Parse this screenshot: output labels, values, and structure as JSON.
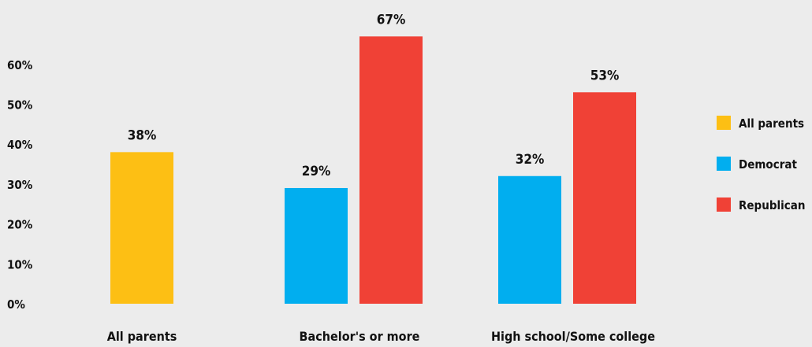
{
  "chart_data": {
    "type": "bar",
    "categories": [
      "All parents",
      "Bachelor's or more",
      "High school/Some college"
    ],
    "series": [
      {
        "name": "All parents",
        "color": "#fdbf14",
        "values": [
          38,
          null,
          null
        ]
      },
      {
        "name": "Democrat",
        "color": "#01aeef",
        "values": [
          null,
          29,
          32
        ]
      },
      {
        "name": "Republican",
        "color": "#f04136",
        "values": [
          null,
          67,
          53
        ]
      }
    ],
    "data_labels": [
      [
        "38%",
        null,
        null
      ],
      [
        null,
        "29%",
        "32%"
      ],
      [
        null,
        "67%",
        "53%"
      ]
    ],
    "y_ticks": [
      "0%",
      "10%",
      "20%",
      "30%",
      "40%",
      "50%",
      "60%"
    ],
    "ylim": [
      0,
      70
    ],
    "grid": false,
    "legend_position": "right",
    "legend_labels": [
      "All parents",
      "Democrat",
      "Republican"
    ]
  }
}
